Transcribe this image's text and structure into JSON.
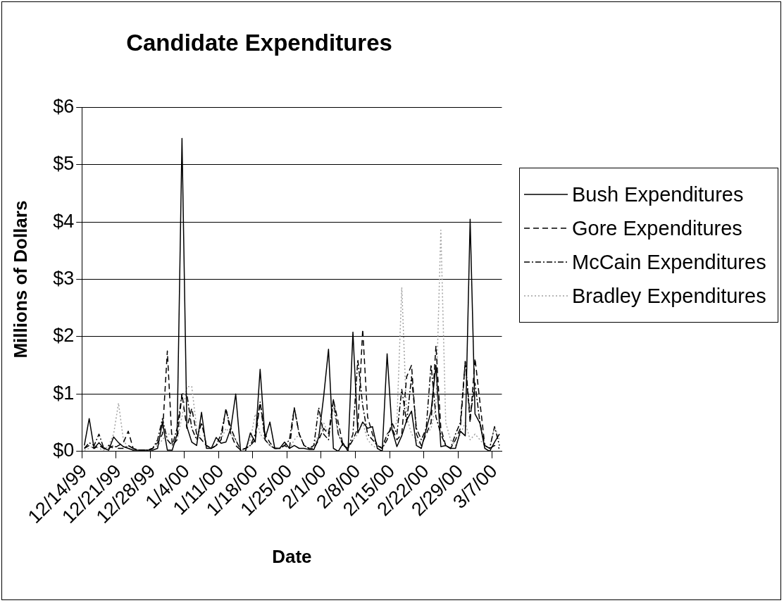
{
  "chart_data": {
    "type": "line",
    "title": "Candidate Expenditures",
    "xlabel": "Date",
    "ylabel": "Millions of Dollars",
    "categories": [
      "12/14/99",
      null,
      null,
      null,
      null,
      null,
      null,
      "12/21/99",
      null,
      null,
      null,
      null,
      null,
      null,
      "12/28/99",
      null,
      null,
      null,
      null,
      null,
      null,
      "1/4/00",
      null,
      null,
      null,
      null,
      null,
      null,
      "1/11/00",
      null,
      null,
      null,
      null,
      null,
      null,
      "1/18/00",
      null,
      null,
      null,
      null,
      null,
      null,
      "1/25/00",
      null,
      null,
      null,
      null,
      null,
      null,
      "2/1/00",
      null,
      null,
      null,
      null,
      null,
      null,
      "2/8/00",
      null,
      null,
      null,
      null,
      null,
      null,
      "2/15/00",
      null,
      null,
      null,
      null,
      null,
      null,
      "2/22/00",
      null,
      null,
      null,
      null,
      null,
      null,
      "2/29/00",
      null,
      null,
      null,
      null,
      null,
      null,
      "3/7/00",
      null
    ],
    "series": [
      {
        "name": "Bush Expenditures",
        "color": "#000000",
        "line_style": "solid",
        "values": [
          0.1,
          0.57,
          0.05,
          0.15,
          0.05,
          0.02,
          0.25,
          0.15,
          0.08,
          0.05,
          0.02,
          0.02,
          0.02,
          0.02,
          0.02,
          0.05,
          0.51,
          0.02,
          0.02,
          0.3,
          5.46,
          0.43,
          0.16,
          0.1,
          0.68,
          0.05,
          0.05,
          0.24,
          0.14,
          0.16,
          0.4,
          1.0,
          0,
          0,
          0.32,
          0.16,
          1.43,
          0.22,
          0.51,
          0.05,
          0.05,
          0.16,
          0.05,
          0.1,
          0.05,
          0.05,
          0.03,
          0.03,
          0.24,
          0.95,
          1.78,
          0.05,
          0,
          0.14,
          0,
          2.08,
          0.32,
          0.51,
          0.4,
          0.43,
          0.05,
          0,
          1.7,
          0.38,
          0.08,
          0.27,
          0.54,
          0.7,
          0.1,
          0.05,
          0.38,
          0.7,
          1.5,
          0.08,
          0.1,
          0.05,
          0.05,
          0.35,
          0.27,
          4.05,
          0.65,
          0.49,
          0.05,
          0,
          0.16,
          0.3
        ]
      },
      {
        "name": "Gore Expenditures",
        "color": "#000000",
        "line_style": "dashed",
        "values": [
          0.05,
          0.1,
          0.05,
          0.1,
          0.05,
          0.1,
          0.05,
          0.1,
          0.15,
          0.35,
          0.05,
          0.02,
          0.02,
          0.02,
          0.05,
          0.15,
          0.3,
          1.75,
          0.1,
          0.2,
          1.0,
          0.4,
          0.75,
          0.3,
          0.2,
          0.1,
          0.05,
          0.1,
          0.2,
          0.75,
          0.3,
          0.1,
          0.02,
          0.05,
          0.1,
          0.2,
          0.85,
          0.3,
          0.15,
          0.05,
          0.05,
          0.1,
          0.05,
          0.75,
          0.3,
          0.1,
          0.05,
          0.05,
          0.2,
          0.4,
          0.3,
          0.9,
          0.5,
          0.1,
          0.05,
          0.2,
          0.4,
          2.13,
          0.6,
          0.3,
          0.1,
          0.05,
          0.3,
          0.4,
          0.2,
          0.3,
          1.3,
          1.5,
          0.3,
          0.1,
          0.3,
          0.5,
          1.84,
          0.4,
          0.1,
          0.05,
          0.2,
          0.4,
          1.57,
          0.5,
          1.62,
          0.86,
          0.1,
          0.05,
          0.1,
          0.05
        ]
      },
      {
        "name": "McCain Expenditures",
        "color": "#000000",
        "line_style": "dashdot",
        "values": [
          0.05,
          0.15,
          0.1,
          0.3,
          0.05,
          0.05,
          0.1,
          0.05,
          0.05,
          0.1,
          0.05,
          0.02,
          0.02,
          0.02,
          0.05,
          0.2,
          0.57,
          0.2,
          0.1,
          0.4,
          1.0,
          1.0,
          0.4,
          0.2,
          0.5,
          0.1,
          0.05,
          0.1,
          0.3,
          0.73,
          0.4,
          0.2,
          0.02,
          0.05,
          0.1,
          0.3,
          0.86,
          0.2,
          0.1,
          0.05,
          0.05,
          0.1,
          0.2,
          0.76,
          0.3,
          0.1,
          0.05,
          0.1,
          0.76,
          0.3,
          0.2,
          0.9,
          0.3,
          0.1,
          0.05,
          0.3,
          1.6,
          0.8,
          0.3,
          0.2,
          0.1,
          0.05,
          0.2,
          0.5,
          0.3,
          1.08,
          0.5,
          1.3,
          0.4,
          0.2,
          0.4,
          1.51,
          0.6,
          0.3,
          0.1,
          0.05,
          0.3,
          0.5,
          1.57,
          0.6,
          1.19,
          0.5,
          0.1,
          0.05,
          0.43,
          0.1
        ]
      },
      {
        "name": "Bradley Expenditures",
        "color": "#a0a0a0",
        "line_style": "dotted",
        "values": [
          0.02,
          0.05,
          0.1,
          0.05,
          0.02,
          0.1,
          0.3,
          0.84,
          0.2,
          0.05,
          0.02,
          0.02,
          0.02,
          0.02,
          0.05,
          0.1,
          0.2,
          0.3,
          0.3,
          0.2,
          0.6,
          1.13,
          1.13,
          0.4,
          0.2,
          0.1,
          0.05,
          0.1,
          0.2,
          0.4,
          0.3,
          0.2,
          0.02,
          0.05,
          0.2,
          0.65,
          0.3,
          0.2,
          0.1,
          0.05,
          0.05,
          0.1,
          0.05,
          0.2,
          0.3,
          0.1,
          0.05,
          0.1,
          0.3,
          0.5,
          0.3,
          0.76,
          0.3,
          0.1,
          0.05,
          0.2,
          0.3,
          0.5,
          0.2,
          0.1,
          0.05,
          0.1,
          0.3,
          0.4,
          0.5,
          2.86,
          0.6,
          0.3,
          0.2,
          0.1,
          0.3,
          0.4,
          0.8,
          3.86,
          0.5,
          0.2,
          0.1,
          0.3,
          0.5,
          0.2,
          0.3,
          0.2,
          0.1,
          0.05,
          0.43,
          0.2
        ]
      }
    ],
    "ylim": [
      0,
      6
    ],
    "yticks": [
      {
        "value": 0,
        "label": "$0"
      },
      {
        "value": 1,
        "label": "$1"
      },
      {
        "value": 2,
        "label": "$2"
      },
      {
        "value": 3,
        "label": "$3"
      },
      {
        "value": 4,
        "label": "$4"
      },
      {
        "value": 5,
        "label": "$5"
      },
      {
        "value": 6,
        "label": "$6"
      }
    ],
    "grid": "y",
    "legend": "right",
    "marker": "none"
  }
}
